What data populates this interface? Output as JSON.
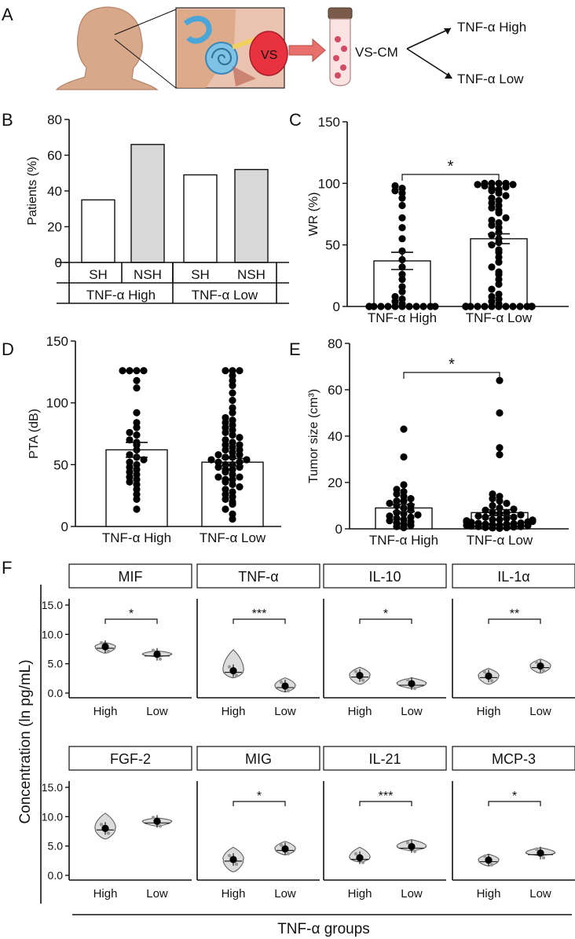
{
  "colors": {
    "ink": "#111111",
    "bar_fill_sh": "#ffffff",
    "bar_fill_nsh": "#d8d8d8",
    "violin_fill": "#dcdcdc",
    "vs_tumor": "#e8323f",
    "arrow": "#e8706a"
  },
  "panel_a": {
    "letter": "A",
    "tumor_label": "VS",
    "tube_label": "VS-CM",
    "groups": [
      "TNF-α High",
      "TNF-α Low"
    ]
  },
  "chart_data": [
    {
      "panel": "B",
      "type": "bar",
      "categories": [
        "SH",
        "NSH",
        "SH",
        "NSH"
      ],
      "group_labels": [
        "TNF-α High",
        "TNF-α Low"
      ],
      "values": [
        35,
        66,
        49,
        52
      ],
      "fills": [
        "white",
        "grey",
        "white",
        "grey"
      ],
      "ylabel": "Patients (%)",
      "ylim": [
        0,
        80
      ],
      "yticks": [
        "0",
        "20",
        "40",
        "60",
        "80"
      ]
    },
    {
      "panel": "C",
      "type": "bar",
      "categories": [
        "TNF-α High",
        "TNF-α Low"
      ],
      "means": [
        37,
        55
      ],
      "sem": [
        7,
        4
      ],
      "ylabel": "WR (%)",
      "ylim": [
        0,
        150
      ],
      "yticks": [
        "0",
        "50",
        "100",
        "150"
      ],
      "significance": "*",
      "points": [
        [
          0,
          0,
          0,
          0,
          0,
          0,
          0,
          0,
          0,
          0,
          0,
          0,
          2,
          4,
          6,
          8,
          12,
          16,
          22,
          26,
          32,
          38,
          45,
          55,
          64,
          72,
          82,
          88,
          92,
          94,
          96,
          98
        ],
        [
          0,
          0,
          0,
          0,
          0,
          0,
          0,
          0,
          0,
          0,
          0,
          0,
          0,
          0,
          0,
          0,
          0,
          0,
          0,
          2,
          4,
          6,
          8,
          10,
          14,
          18,
          22,
          26,
          28,
          32,
          36,
          40,
          44,
          46,
          50,
          52,
          55,
          58,
          60,
          64,
          66,
          68,
          70,
          72,
          76,
          78,
          80,
          82,
          84,
          86,
          88,
          90,
          92,
          94,
          95,
          96,
          97,
          98,
          99,
          99,
          100,
          100,
          100,
          100
        ]
      ]
    },
    {
      "panel": "D",
      "type": "bar",
      "categories": [
        "TNF-α High",
        "TNF-α Low"
      ],
      "means": [
        62,
        52
      ],
      "sem": [
        6,
        3
      ],
      "ylabel": "PTA (dB)",
      "ylim": [
        0,
        150
      ],
      "yticks": [
        "0",
        "50",
        "100",
        "150"
      ],
      "points": [
        [
          14,
          22,
          26,
          30,
          34,
          36,
          38,
          40,
          42,
          44,
          46,
          48,
          50,
          52,
          54,
          56,
          58,
          62,
          66,
          68,
          70,
          74,
          76,
          80,
          84,
          92,
          112,
          118,
          126,
          126,
          126,
          126
        ],
        [
          6,
          10,
          14,
          18,
          20,
          22,
          24,
          26,
          28,
          30,
          32,
          34,
          36,
          38,
          38,
          40,
          40,
          42,
          44,
          46,
          46,
          48,
          48,
          50,
          50,
          52,
          52,
          54,
          54,
          56,
          56,
          58,
          58,
          60,
          62,
          62,
          64,
          66,
          66,
          68,
          70,
          72,
          74,
          76,
          78,
          80,
          82,
          84,
          86,
          88,
          92,
          96,
          102,
          108,
          114,
          118,
          122,
          126,
          126,
          126
        ]
      ]
    },
    {
      "panel": "E",
      "type": "bar",
      "categories": [
        "TNF-α High",
        "TNF-α Low"
      ],
      "means": [
        9,
        7
      ],
      "sem": [
        1.6,
        1.3
      ],
      "ylabel": "Tumor size (cm³)",
      "ylim": [
        0,
        80
      ],
      "yticks": [
        "0",
        "20",
        "40",
        "60",
        "80"
      ],
      "significance": "*",
      "points": [
        [
          0.5,
          1,
          1.5,
          2,
          2.5,
          3,
          3.5,
          4,
          4.5,
          5,
          5.5,
          6,
          6.5,
          7,
          8,
          9,
          10,
          10,
          11,
          12,
          12,
          13,
          14,
          15,
          16,
          17,
          19,
          31,
          43
        ],
        [
          0.2,
          0.4,
          0.5,
          0.6,
          0.8,
          1,
          1,
          1.2,
          1.4,
          1.5,
          1.6,
          1.8,
          2,
          2,
          2.2,
          2.4,
          2.5,
          2.8,
          3,
          3,
          3.2,
          3.5,
          3.8,
          4,
          4,
          4.5,
          5,
          5,
          5.5,
          6,
          6.5,
          7,
          7,
          8,
          8.5,
          9,
          10,
          11,
          12,
          13,
          14,
          15,
          32,
          35,
          50,
          64
        ]
      ]
    },
    {
      "panel": "F",
      "type": "violin",
      "facets": [
        "MIF",
        "TNF-α",
        "IL-10",
        "IL-1α",
        "FGF-2",
        "MIG",
        "IL-21",
        "MCP-3"
      ],
      "categories": [
        "High",
        "Low"
      ],
      "ylabel": "Concentration (ln pg/mL)",
      "xlabel": "TNF-α groups",
      "ylim": [
        0,
        15
      ],
      "yticks": [
        "0.0",
        "5.0",
        "10.0",
        "15.0"
      ],
      "means": [
        [
          7.9,
          6.6
        ],
        [
          3.8,
          1.2
        ],
        [
          3.0,
          1.6
        ],
        [
          2.9,
          4.6
        ],
        [
          8.0,
          9.2
        ],
        [
          2.7,
          4.5
        ],
        [
          3.0,
          4.9
        ],
        [
          2.6,
          3.8
        ]
      ],
      "ranges": [
        [
          [
            6.8,
            8.6
          ],
          [
            6.2,
            7.2
          ]
        ],
        [
          [
            2.6,
            7.4
          ],
          [
            0.2,
            2.6
          ]
        ],
        [
          [
            1.5,
            4.4
          ],
          [
            0.8,
            2.6
          ]
        ],
        [
          [
            1.5,
            4.2
          ],
          [
            3.4,
            5.8
          ]
        ],
        [
          [
            6.2,
            10.6
          ],
          [
            8.4,
            9.8
          ]
        ],
        [
          [
            0.6,
            4.8
          ],
          [
            3.5,
            5.8
          ]
        ],
        [
          [
            2.3,
            4.8
          ],
          [
            4.2,
            6.1
          ]
        ],
        [
          [
            1.6,
            3.6
          ],
          [
            3.4,
            4.7
          ]
        ]
      ],
      "significance": [
        "*",
        "***",
        "*",
        "**",
        "",
        "*",
        "***",
        "*"
      ]
    }
  ],
  "panel_letters": [
    "B",
    "C",
    "D",
    "E",
    "F"
  ]
}
